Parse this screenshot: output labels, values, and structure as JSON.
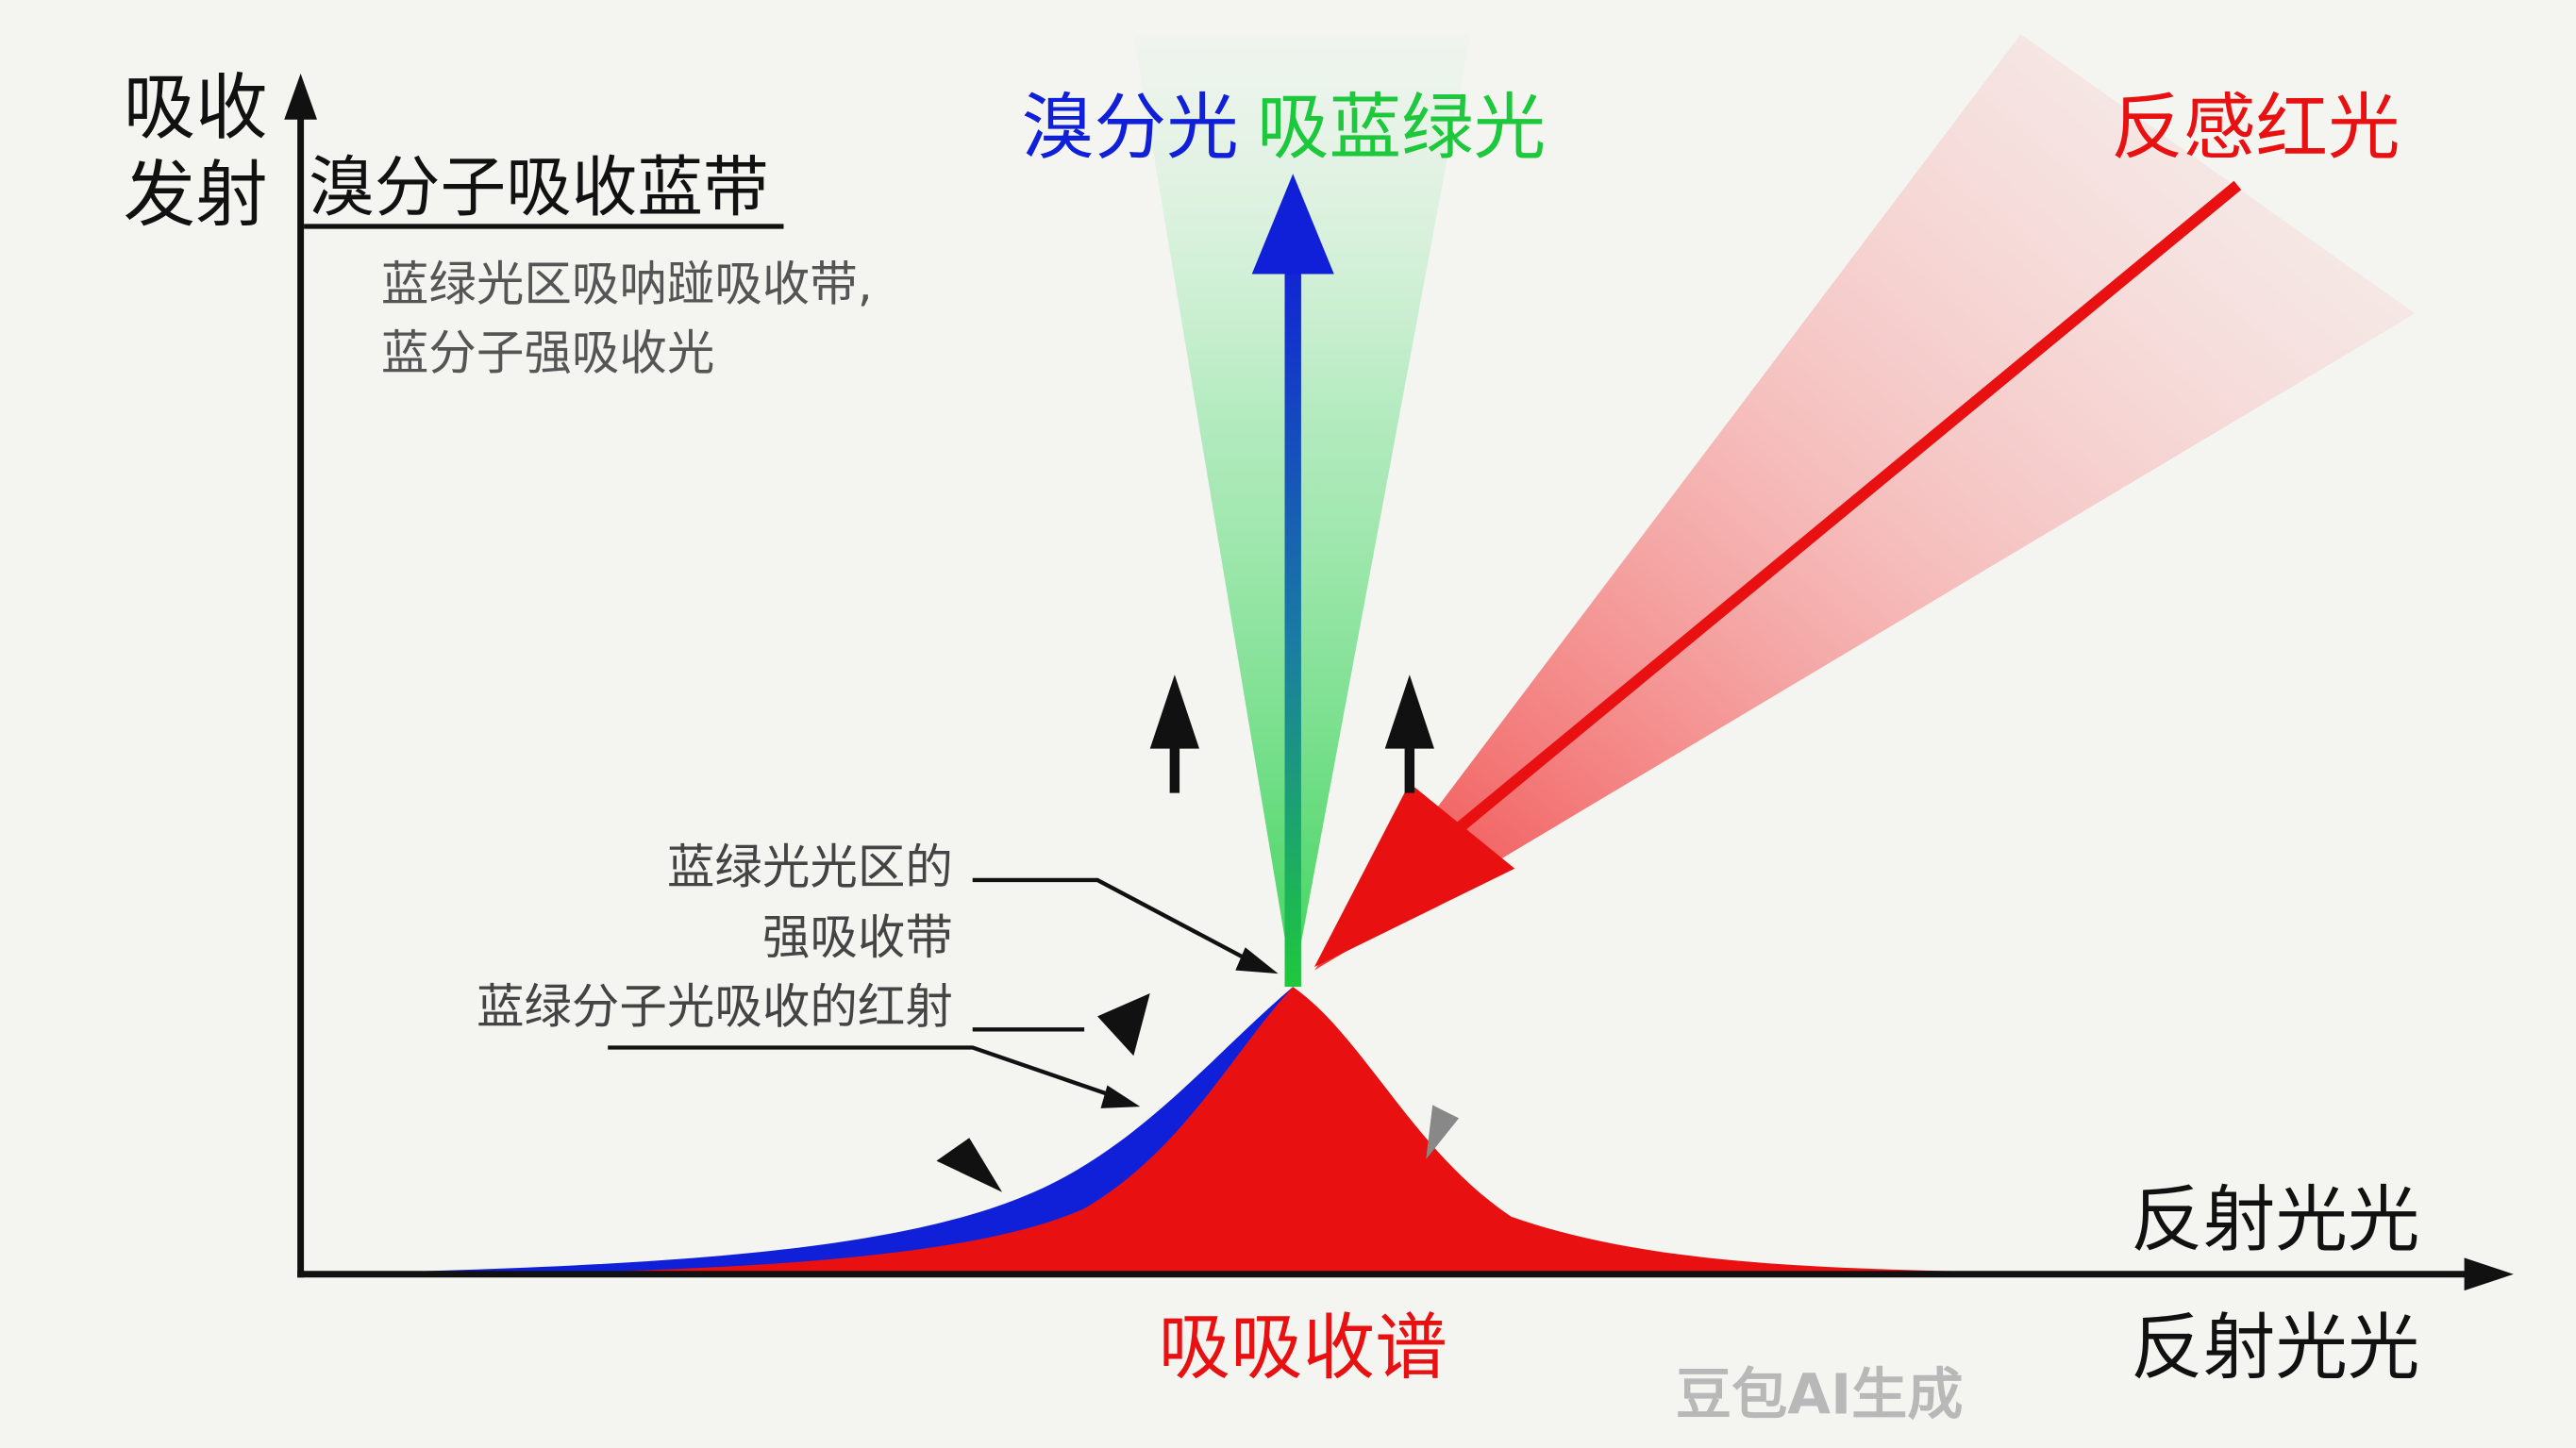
{
  "axes": {
    "y_label_line1": "吸收",
    "y_label_line2": "发射",
    "x_label_top": "反射光光",
    "x_label_bottom": "反射光光"
  },
  "header": {
    "title": "溴分子吸收蓝带",
    "note_line1": "蓝绿光区吸呐踫吸收带,",
    "note_line2": "蓝分子强吸收光"
  },
  "top_labels": {
    "blue": "溴分光",
    "green": "吸蓝绿光",
    "red": "反感红光"
  },
  "annotations": {
    "line1": "蓝绿光光区的",
    "line2": "强吸收带",
    "line3": "蓝绿分子光吸收的红射"
  },
  "spectrum_label": "吸吸收谱",
  "watermark": "豆包AI生成",
  "colors": {
    "blue": "#1020d8",
    "green": "#1ec83c",
    "red": "#e81010",
    "axis": "#111111",
    "gray_text": "#555555"
  }
}
